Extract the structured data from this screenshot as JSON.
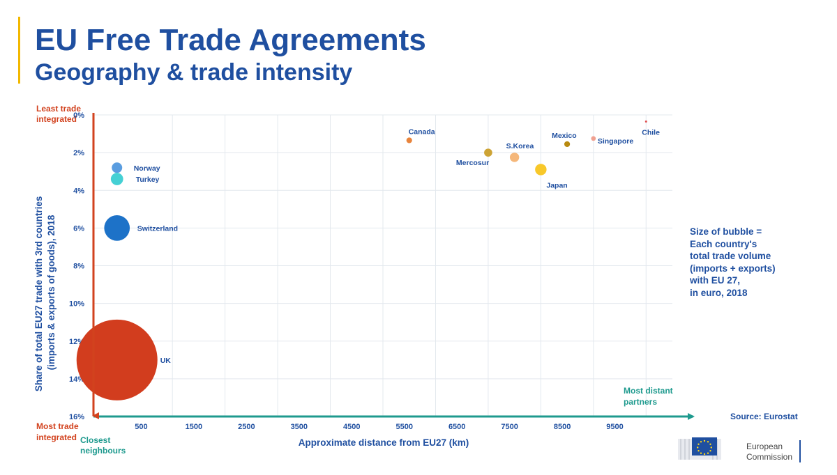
{
  "header": {
    "title": "EU Free Trade Agreements",
    "subtitle": "Geography & trade intensity"
  },
  "labels": {
    "top_left": [
      "Least trade",
      "integrated"
    ],
    "bottom_left": [
      "Most trade",
      "integrated"
    ],
    "closest": [
      "Closest",
      "neighbours"
    ],
    "distant": [
      "Most distant",
      "partners"
    ]
  },
  "note": [
    "Size of bubble =",
    "Each country's",
    "total trade volume",
    "(imports + exports)",
    "with EU 27,",
    "in euro, 2018"
  ],
  "source": "Source: Eurostat",
  "logo": {
    "line1": "European",
    "line2": "Commission"
  },
  "colors": {
    "title": "#1f4fa0",
    "red_axis": "#d2421e",
    "teal_axis": "#1e9a8e",
    "flag": "#1f4fa0",
    "flag_stars": "#ffd617"
  },
  "chart_data": {
    "type": "scatter",
    "bubble": true,
    "xlabel": "Approximate distance from EU27 (km)",
    "ylabel": [
      "Share of total EU27 trade with 3rd countries",
      "(imports & exports of goods), 2018"
    ],
    "x_ticks": [
      500,
      1500,
      2500,
      3500,
      4500,
      5500,
      6500,
      7500,
      8500,
      9500
    ],
    "y_ticks": [
      "0%",
      "2%",
      "4%",
      "6%",
      "8%",
      "10%",
      "12%",
      "14%",
      "16%"
    ],
    "xlim": [
      -500,
      10500
    ],
    "ylim": [
      0,
      16
    ],
    "y_inverted": true,
    "grid": true,
    "points": [
      {
        "name": "Norway",
        "x": 0,
        "y": 2.8,
        "size_rel": 0.1,
        "color": "#5a9de0"
      },
      {
        "name": "Turkey",
        "x": 0,
        "y": 3.4,
        "size_rel": 0.14,
        "color": "#45d0d4"
      },
      {
        "name": "Switzerland",
        "x": 0,
        "y": 6.0,
        "size_rel": 0.6,
        "color": "#1d72c8"
      },
      {
        "name": "UK",
        "x": 0,
        "y": 13.0,
        "size_rel": 6.0,
        "color": "#d23d1e"
      },
      {
        "name": "Canada",
        "x": 5500,
        "y": 1.35,
        "size_rel": 0.03,
        "color": "#e8843c"
      },
      {
        "name": "Mercosur",
        "x": 7000,
        "y": 2.0,
        "size_rel": 0.06,
        "color": "#cda334"
      },
      {
        "name": "S.Korea",
        "x": 7500,
        "y": 2.25,
        "size_rel": 0.08,
        "color": "#f5b77a"
      },
      {
        "name": "Japan",
        "x": 8000,
        "y": 2.9,
        "size_rel": 0.12,
        "color": "#f8c82a"
      },
      {
        "name": "Mexico",
        "x": 8500,
        "y": 1.55,
        "size_rel": 0.03,
        "color": "#b88a10"
      },
      {
        "name": "Singapore",
        "x": 9000,
        "y": 1.25,
        "size_rel": 0.02,
        "color": "#f0a090"
      },
      {
        "name": "Chile",
        "x": 10000,
        "y": 0.35,
        "size_rel": 0.001,
        "color": "#e05050"
      }
    ]
  }
}
